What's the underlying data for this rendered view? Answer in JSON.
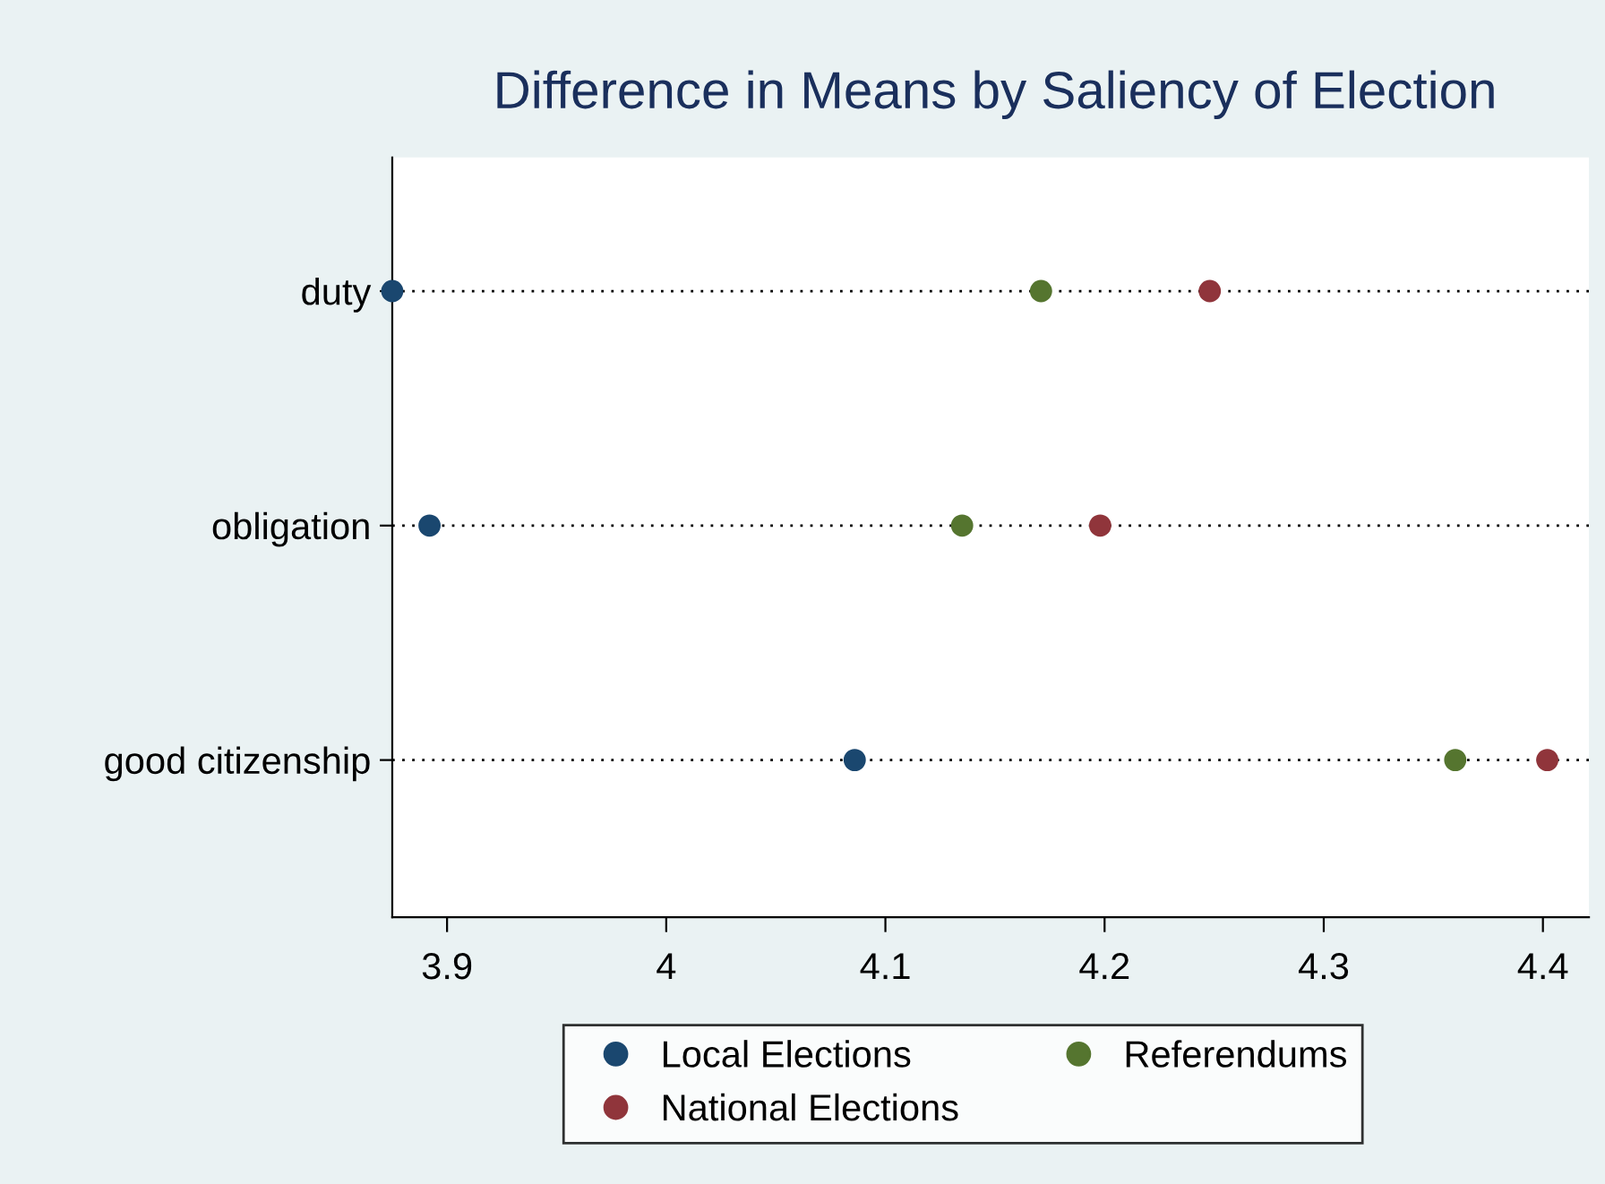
{
  "chart_data": {
    "type": "scatter",
    "title": "Difference in Means by Saliency of Election",
    "orientation": "horizontal",
    "categories": [
      "duty",
      "obligation",
      "good citizenship"
    ],
    "series": [
      {
        "name": "Local Elections",
        "color": "#1a476f",
        "values": [
          3.875,
          3.892,
          4.086
        ]
      },
      {
        "name": "National Elections",
        "color": "#90353b",
        "values": [
          4.248,
          4.198,
          4.402
        ]
      },
      {
        "name": "Referendums",
        "color": "#55752f",
        "values": [
          4.171,
          4.135,
          4.36
        ]
      }
    ],
    "xlim": [
      3.875,
      4.421
    ],
    "xticks": [
      3.9,
      4,
      4.1,
      4.2,
      4.3,
      4.4
    ],
    "grid": "y",
    "legend": "bottom",
    "marker": "circle"
  }
}
